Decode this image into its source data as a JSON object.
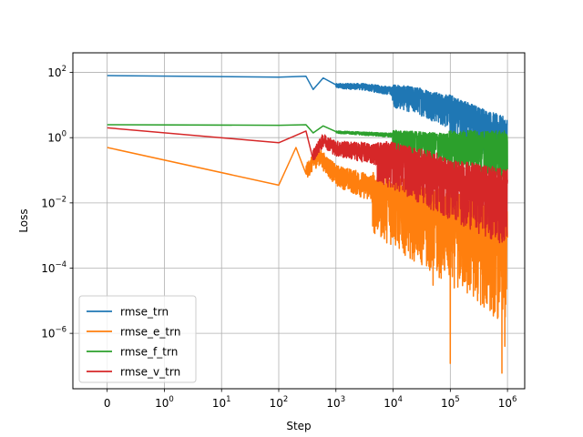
{
  "chart_data": {
    "type": "line",
    "xlabel": "Step",
    "ylabel": "Loss",
    "x_scale": "symlog",
    "y_scale": "log",
    "xlim": [
      -0.6,
      2000000
    ],
    "ylim": [
      2e-08,
      400
    ],
    "x_ticks": [
      {
        "value": 0,
        "base": "0",
        "exp": ""
      },
      {
        "value": 1,
        "base": "10",
        "exp": "0"
      },
      {
        "value": 10,
        "base": "10",
        "exp": "1"
      },
      {
        "value": 100,
        "base": "10",
        "exp": "2"
      },
      {
        "value": 1000,
        "base": "10",
        "exp": "3"
      },
      {
        "value": 10000,
        "base": "10",
        "exp": "4"
      },
      {
        "value": 100000,
        "base": "10",
        "exp": "5"
      },
      {
        "value": 1000000,
        "base": "10",
        "exp": "6"
      }
    ],
    "y_ticks": [
      {
        "value": 100,
        "base": "10",
        "exp": "2"
      },
      {
        "value": 1,
        "base": "10",
        "exp": "0"
      },
      {
        "value": 0.01,
        "base": "10",
        "exp": "−2"
      },
      {
        "value": 0.0001,
        "base": "10",
        "exp": "−4"
      },
      {
        "value": 1e-06,
        "base": "10",
        "exp": "−6"
      }
    ],
    "grid": true,
    "legend_position": "lower-left",
    "series": [
      {
        "name": "rmse_trn",
        "color": "#1f77b4",
        "points": [
          [
            0,
            80
          ],
          [
            100,
            72
          ],
          [
            300,
            76
          ],
          [
            400,
            30
          ],
          [
            600,
            68
          ],
          [
            1000,
            40
          ],
          [
            3000,
            38
          ],
          [
            10000,
            28
          ],
          [
            30000,
            20
          ],
          [
            100000,
            10
          ],
          [
            300000,
            4
          ],
          [
            1000000,
            1.5
          ]
        ],
        "noise": {
          "from": 1000,
          "to": 1000000,
          "down": [
            0.6,
            0.2,
            0.15
          ],
          "up": [
            1.4,
            1.8,
            2.0
          ]
        }
      },
      {
        "name": "rmse_e_trn",
        "color": "#ff7f0e",
        "points": [
          [
            0,
            0.5
          ],
          [
            100,
            0.035
          ],
          [
            200,
            0.5
          ],
          [
            300,
            0.1
          ],
          [
            500,
            0.3
          ],
          [
            1000,
            0.08
          ],
          [
            10000,
            0.02
          ],
          [
            100000,
            0.005
          ],
          [
            1000000,
            0.001
          ]
        ],
        "noise": {
          "from": 300,
          "to": 1000000,
          "down": [
            0.2,
            0.01,
            0.01
          ],
          "up": [
            3,
            4,
            4
          ]
        },
        "spikes": [
          [
            100000,
            1.2e-07
          ],
          [
            800000,
            6e-08
          ],
          [
            900000,
            4e-07
          ],
          [
            50000,
            3e-05
          ],
          [
            300000,
            1e-05
          ]
        ]
      },
      {
        "name": "rmse_f_trn",
        "color": "#2ca02c",
        "points": [
          [
            0,
            2.5
          ],
          [
            100,
            2.4
          ],
          [
            300,
            2.5
          ],
          [
            400,
            1.4
          ],
          [
            600,
            2.3
          ],
          [
            1000,
            1.5
          ],
          [
            10000,
            1.2
          ],
          [
            100000,
            0.8
          ],
          [
            1000000,
            0.6
          ]
        ],
        "noise": {
          "from": 1000,
          "to": 1000000,
          "down": [
            0.8,
            0.2,
            0.15
          ],
          "up": [
            1.2,
            1.6,
            2.0
          ]
        }
      },
      {
        "name": "rmse_v_trn",
        "color": "#d62728",
        "points": [
          [
            0,
            2.0
          ],
          [
            100,
            0.7
          ],
          [
            300,
            1.6
          ],
          [
            400,
            0.3
          ],
          [
            600,
            0.9
          ],
          [
            1000,
            0.5
          ],
          [
            10000,
            0.3
          ],
          [
            100000,
            0.08
          ],
          [
            1000000,
            0.03
          ]
        ],
        "noise": {
          "from": 400,
          "to": 1000000,
          "down": [
            0.3,
            0.05,
            0.05
          ],
          "up": [
            2.5,
            3.0,
            2.5
          ]
        }
      }
    ]
  }
}
